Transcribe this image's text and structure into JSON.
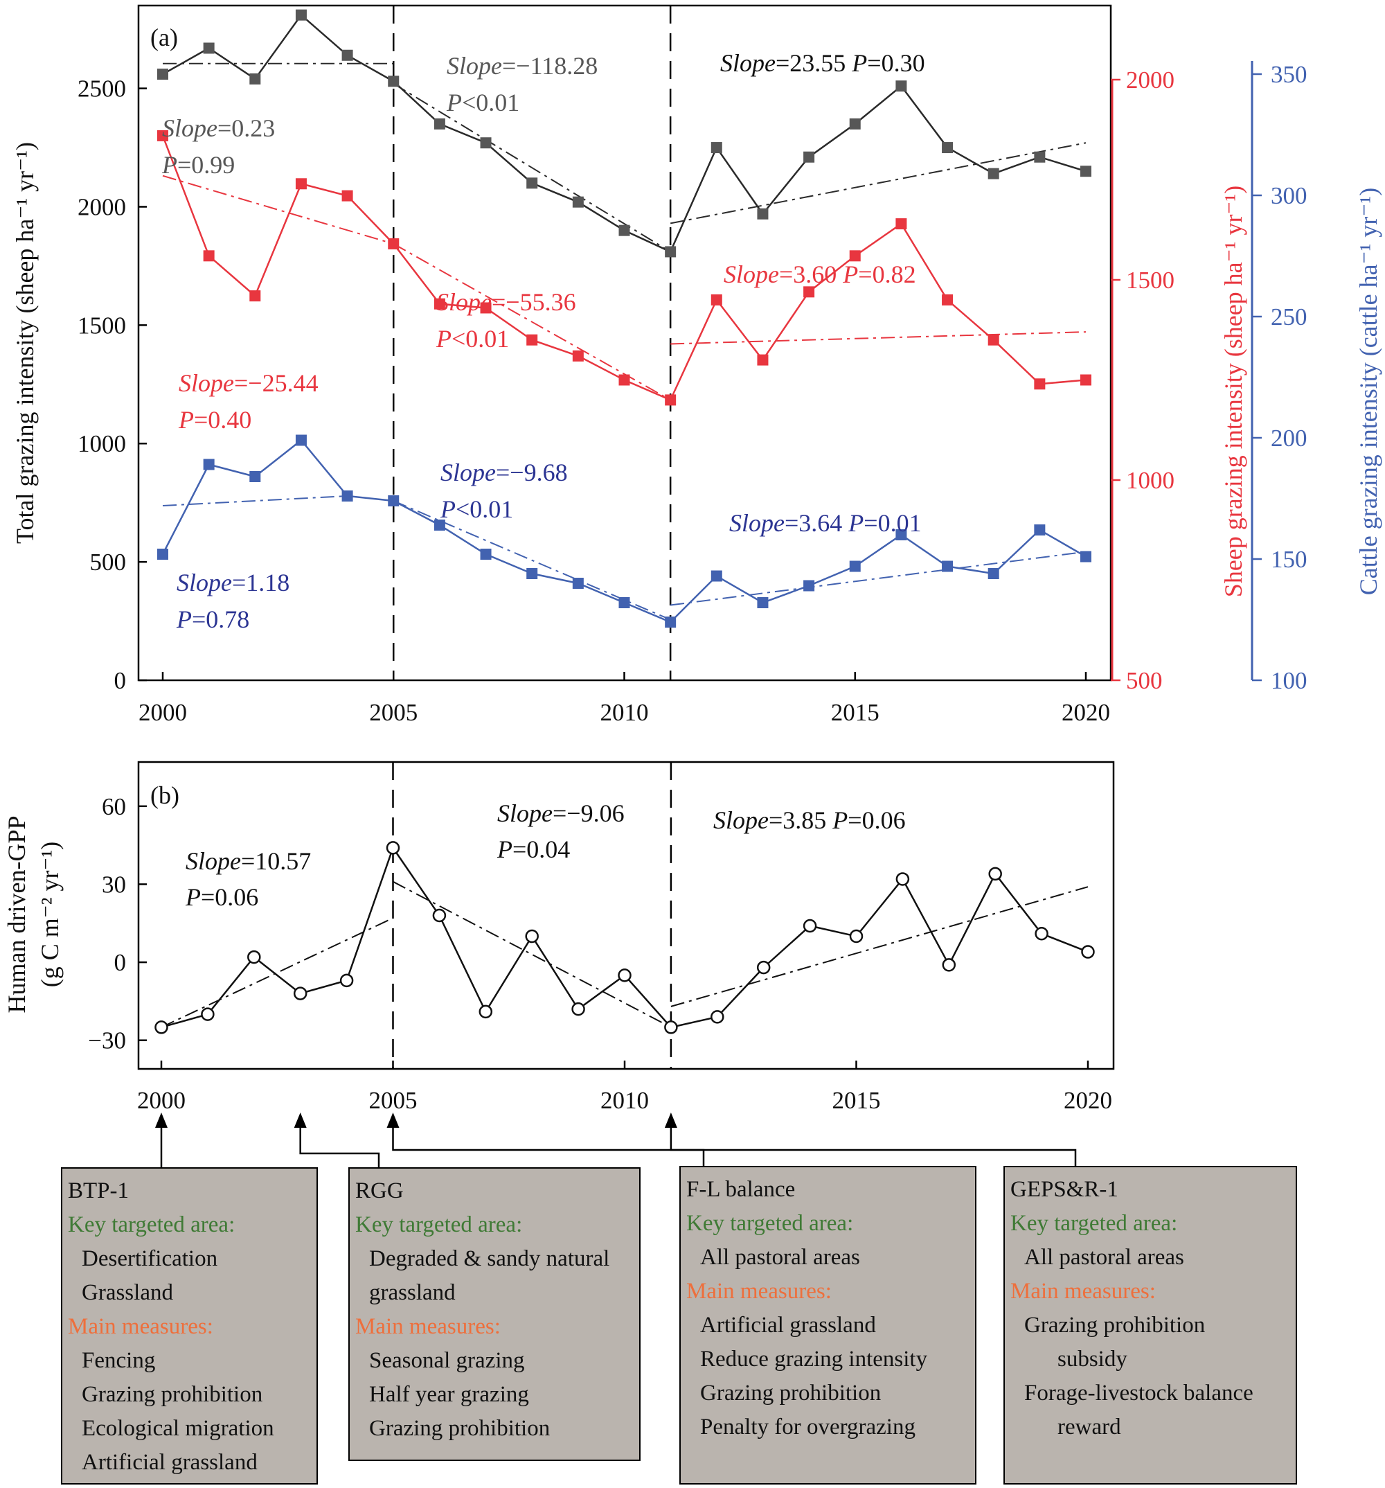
{
  "colors": {
    "total": "#2a2a2a",
    "total_marker": "#575757",
    "sheep": "#e8363f",
    "cattle": "#4262b0",
    "cattle_text": "#2c3593",
    "key_label": "#3f7a35",
    "measure_label": "#ee6f3c",
    "box_fill": "#bab4ae"
  },
  "chart_data": [
    {
      "panel": "(a)",
      "type": "line",
      "xlim": [
        2000,
        2020
      ],
      "x_ticks": [
        "2000",
        "2005",
        "2010",
        "2015",
        "2020"
      ],
      "ylabel_left": "Total grazing intensity (sheep ha⁻¹ yr⁻¹)",
      "ylabel_right1": "Sheep grazing intensity (sheep ha⁻¹ yr⁻¹)",
      "ylabel_right2": "Cattle grazing intensity (cattle ha⁻¹ yr⁻¹)",
      "ylim_left": [
        0,
        2850
      ],
      "yticks_left": [
        "0",
        "500",
        "1000",
        "1500",
        "2000",
        "2500"
      ],
      "ylim_sheep": [
        500,
        2000
      ],
      "yticks_sheep": [
        "500",
        "1000",
        "1500",
        "2000"
      ],
      "ylim_cattle": [
        100,
        350
      ],
      "yticks_cattle": [
        "100",
        "150",
        "200",
        "250",
        "300",
        "350"
      ],
      "breakpoints": [
        2005,
        2011
      ],
      "x": [
        2000,
        2001,
        2002,
        2003,
        2004,
        2005,
        2006,
        2007,
        2008,
        2009,
        2010,
        2011,
        2012,
        2013,
        2014,
        2015,
        2016,
        2017,
        2018,
        2019,
        2020
      ],
      "series": [
        {
          "key": "total",
          "axis": "left",
          "values": [
            2560,
            2670,
            2540,
            2810,
            2640,
            2530,
            2350,
            2270,
            2100,
            2020,
            1900,
            1810,
            2250,
            1970,
            2210,
            2350,
            2510,
            2250,
            2140,
            2210,
            2150
          ],
          "trends": [
            {
              "x": [
                2000,
                2005
              ],
              "y": [
                2605,
                2605
              ]
            },
            {
              "x": [
                2005,
                2011
              ],
              "y": [
                2520,
                1810
              ]
            },
            {
              "x": [
                2011,
                2020
              ],
              "y": [
                1930,
                2270
              ]
            }
          ]
        },
        {
          "key": "sheep",
          "axis": "sheep",
          "values": [
            1860,
            1560,
            1460,
            1740,
            1710,
            1590,
            1440,
            1430,
            1350,
            1310,
            1250,
            1200,
            1450,
            1300,
            1470,
            1560,
            1640,
            1450,
            1350,
            1240,
            1250
          ],
          "trends": [
            {
              "x": [
                2000,
                2005
              ],
              "y": [
                1760,
                1590
              ]
            },
            {
              "x": [
                2005,
                2011
              ],
              "y": [
                1590,
                1200
              ]
            },
            {
              "x": [
                2011,
                2020
              ],
              "y": [
                1340,
                1370
              ]
            }
          ]
        },
        {
          "key": "cattle",
          "axis": "cattle",
          "values": [
            152,
            189,
            184,
            199,
            176,
            174,
            164,
            152,
            144,
            140,
            132,
            124,
            143,
            132,
            139,
            147,
            160,
            147,
            144,
            162,
            151
          ],
          "trends": [
            {
              "x": [
                2000,
                2004
              ],
              "y": [
                172,
                176
              ]
            },
            {
              "x": [
                2005,
                2011
              ],
              "y": [
                174,
                125
              ]
            },
            {
              "x": [
                2011,
                2020
              ],
              "y": [
                131,
                153
              ]
            }
          ]
        }
      ],
      "annotations": [
        {
          "series": "total",
          "lines": [
            {
              "slope": "0.23"
            },
            {
              "p": "=0.99"
            }
          ]
        },
        {
          "series": "total",
          "lines": [
            {
              "slope": "−118.28"
            },
            {
              "p": "<0.01"
            }
          ]
        },
        {
          "series": "total",
          "lines": [
            {
              "slope": "23.55",
              "p": "=0.30"
            }
          ]
        },
        {
          "series": "sheep",
          "lines": [
            {
              "slope": "−25.44"
            },
            {
              "p": "=0.40"
            }
          ]
        },
        {
          "series": "sheep",
          "lines": [
            {
              "slope": "−55.36"
            },
            {
              "p": "<0.01"
            }
          ]
        },
        {
          "series": "sheep",
          "lines": [
            {
              "slope": "3.60",
              "p": "=0.82"
            }
          ]
        },
        {
          "series": "cattle",
          "lines": [
            {
              "slope": "1.18"
            },
            {
              "p": "=0.78"
            }
          ]
        },
        {
          "series": "cattle",
          "lines": [
            {
              "slope": "−9.68"
            },
            {
              "p": "<0.01"
            }
          ]
        },
        {
          "series": "cattle",
          "lines": [
            {
              "slope": "3.64",
              "p": "=0.01"
            }
          ]
        }
      ]
    },
    {
      "panel": "(b)",
      "type": "line",
      "xlim": [
        2000,
        2020
      ],
      "x_ticks": [
        "2000",
        "2005",
        "2010",
        "2015",
        "2020"
      ],
      "ylabel_line1": "Human driven-GPP",
      "ylabel_line2": "(g C m⁻² yr⁻¹)",
      "ylim": [
        -41,
        77
      ],
      "yticks": [
        "−30",
        "0",
        "30",
        "60"
      ],
      "breakpoints": [
        2005,
        2011
      ],
      "x": [
        2000,
        2001,
        2002,
        2003,
        2004,
        2005,
        2006,
        2007,
        2008,
        2009,
        2010,
        2011,
        2012,
        2013,
        2014,
        2015,
        2016,
        2017,
        2018,
        2019,
        2020
      ],
      "series": [
        {
          "key": "gpp",
          "values": [
            -25,
            -20,
            2,
            -12,
            -7,
            44,
            18,
            -19,
            10,
            -18,
            -5,
            -25,
            -21,
            -2,
            14,
            10,
            32,
            -1,
            34,
            11,
            4
          ],
          "trends": [
            {
              "x": [
                2000,
                2005
              ],
              "y": [
                -25,
                17
              ]
            },
            {
              "x": [
                2005,
                2011
              ],
              "y": [
                31,
                -25
              ]
            },
            {
              "x": [
                2011,
                2020
              ],
              "y": [
                -17,
                29
              ]
            }
          ]
        }
      ],
      "annotations": [
        {
          "lines": [
            {
              "slope": "10.57"
            },
            {
              "p": "=0.06"
            }
          ]
        },
        {
          "lines": [
            {
              "slope": "−9.06"
            },
            {
              "p": "=0.04"
            }
          ]
        },
        {
          "lines": [
            {
              "slope": "3.85",
              "p": "=0.06"
            }
          ]
        }
      ]
    }
  ],
  "policies": [
    {
      "name": "BTP-1",
      "points_to": 2000,
      "key_label": "Key targeted area:",
      "key_items": [
        "Desertification",
        "Grassland"
      ],
      "measure_label": "Main measures:",
      "measure_items": [
        "Fencing",
        "Grazing prohibition",
        "Ecological migration",
        "Artificial grassland"
      ]
    },
    {
      "name": "RGG",
      "points_to": 2003,
      "key_label": "Key targeted area:",
      "key_items": [
        "Degraded & sandy natural",
        "grassland"
      ],
      "measure_label": "Main measures:",
      "measure_items": [
        "Seasonal grazing",
        "Half year grazing",
        "Grazing prohibition"
      ]
    },
    {
      "name": "F-L balance",
      "points_to": 2005,
      "key_label": "Key targeted area:",
      "key_items": [
        "All pastoral areas"
      ],
      "measure_label": "Main measures:",
      "measure_items": [
        "Artificial grassland",
        "Reduce grazing intensity",
        "Grazing prohibition",
        "Penalty for overgrazing"
      ]
    },
    {
      "name": "GEPS&R-1",
      "points_to": 2011,
      "key_label": "Key targeted area:",
      "key_items": [
        "All pastoral areas"
      ],
      "measure_label": "Main measures:",
      "measure_items": [
        "Grazing prohibition",
        "subsidy",
        "Forage-livestock balance",
        "reward"
      ]
    }
  ]
}
